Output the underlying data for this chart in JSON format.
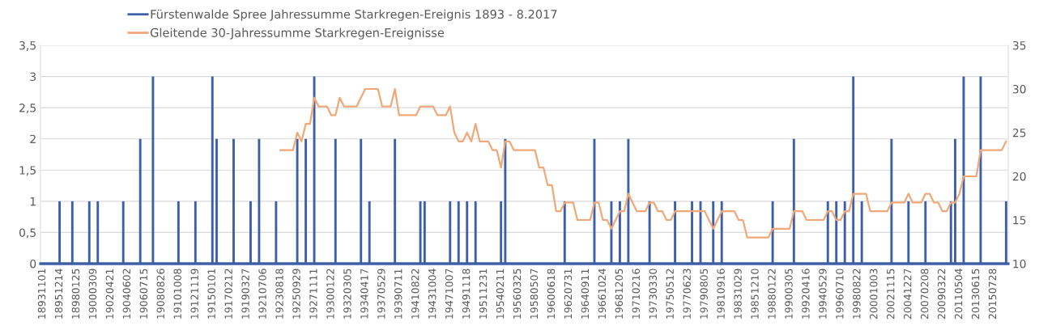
{
  "chart_data": {
    "type": "bar",
    "categories": [
      "18931101",
      null,
      null,
      null,
      "18951214",
      null,
      null,
      null,
      "18980125",
      null,
      null,
      null,
      "19000309",
      null,
      null,
      null,
      "19020421",
      null,
      null,
      null,
      "19040602",
      null,
      null,
      null,
      "19060715",
      null,
      null,
      null,
      "19080826",
      null,
      null,
      null,
      "19101008",
      null,
      null,
      null,
      "19121119",
      null,
      null,
      null,
      "19150101",
      null,
      null,
      null,
      "19170212",
      null,
      null,
      null,
      "19190327",
      null,
      null,
      null,
      "19210706",
      null,
      null,
      null,
      "19230818",
      null,
      null,
      null,
      "19250929",
      null,
      null,
      null,
      "19271111",
      null,
      null,
      null,
      "19300122",
      null,
      null,
      null,
      "19320305",
      null,
      null,
      null,
      "19340417",
      null,
      null,
      null,
      "19370529",
      null,
      null,
      null,
      "19390711",
      null,
      null,
      null,
      "19410822",
      null,
      null,
      null,
      "19431004",
      null,
      null,
      null,
      "19471007",
      null,
      null,
      null,
      "19491118",
      null,
      null,
      null,
      "19511231",
      null,
      null,
      null,
      "19540211",
      null,
      null,
      null,
      "19560325",
      null,
      null,
      null,
      "19580507",
      null,
      null,
      null,
      "19600618",
      null,
      null,
      null,
      "19620731",
      null,
      null,
      null,
      "19640911",
      null,
      null,
      null,
      "19661024",
      null,
      null,
      null,
      "19681205",
      null,
      null,
      null,
      "19710216",
      null,
      null,
      null,
      "19730330",
      null,
      null,
      null,
      "19750512",
      null,
      null,
      null,
      "19770623",
      null,
      null,
      null,
      "19790805",
      null,
      null,
      null,
      "19810916",
      null,
      null,
      null,
      "19831029",
      null,
      null,
      null,
      "19851210",
      null,
      null,
      null,
      "19880122",
      null,
      null,
      null,
      "19900305",
      null,
      null,
      null,
      "19920416",
      null,
      null,
      null,
      "19940529",
      null,
      null,
      null,
      "19960710",
      null,
      null,
      null,
      "19980822",
      null,
      null,
      null,
      "20001003",
      null,
      null,
      null,
      "20021115",
      null,
      null,
      null,
      "20041227",
      null,
      null,
      null,
      "20070208",
      null,
      null,
      null,
      "20090322",
      null,
      null,
      null,
      "20110504",
      null,
      null,
      null,
      "20130615",
      null,
      null,
      null,
      "20150728",
      null,
      null,
      null
    ],
    "series": [
      {
        "name": "Fürstenwalde Spree Jahressumme Starkregen-Ereignis 1893 - 8.2017",
        "color": "#3c5fa8",
        "values": [
          0,
          0,
          0,
          0,
          1,
          0,
          0,
          1,
          0,
          0,
          0,
          1,
          0,
          1,
          0,
          0,
          0,
          0,
          0,
          1,
          0,
          0,
          0,
          2,
          0,
          0,
          3,
          0,
          0,
          0,
          0,
          0,
          1,
          0,
          0,
          0,
          1,
          0,
          0,
          0,
          3,
          2,
          0,
          0,
          0,
          2,
          0,
          0,
          0,
          1,
          0,
          2,
          0,
          0,
          0,
          1,
          0,
          0,
          0,
          0,
          2,
          0,
          2,
          0,
          3,
          0,
          0,
          0,
          0,
          2,
          0,
          0,
          0,
          0,
          0,
          2,
          0,
          1,
          0,
          0,
          0,
          0,
          0,
          2,
          0,
          0,
          0,
          0,
          0,
          1,
          1,
          0,
          0,
          0,
          0,
          0,
          1,
          0,
          1,
          0,
          1,
          0,
          1,
          0,
          0,
          0,
          0,
          0,
          1,
          2,
          0,
          0,
          0,
          0,
          0,
          0,
          0,
          0,
          0,
          0,
          0,
          0,
          0,
          1,
          0,
          0,
          0,
          0,
          0,
          0,
          2,
          0,
          0,
          0,
          1,
          0,
          1,
          0,
          2,
          0,
          0,
          0,
          0,
          1,
          0,
          0,
          0,
          0,
          0,
          1,
          0,
          0,
          0,
          1,
          0,
          1,
          0,
          0,
          1,
          0,
          1,
          0,
          0,
          0,
          0,
          0,
          0,
          0,
          0,
          0,
          0,
          0,
          1,
          0,
          0,
          0,
          0,
          2,
          0,
          0,
          0,
          0,
          0,
          0,
          0,
          1,
          0,
          1,
          0,
          1,
          0,
          3,
          0,
          1,
          0,
          0,
          0,
          0,
          0,
          0,
          2,
          0,
          0,
          0,
          1,
          0,
          0,
          0,
          1,
          0,
          0,
          0,
          0,
          0,
          1,
          2,
          0,
          3,
          0,
          0,
          0,
          3,
          0,
          0,
          0,
          0,
          0,
          1
        ]
      },
      {
        "name": "Gleitende 30-Jahressumme Starkregen-Ereignisse",
        "type": "line",
        "axis": "y2",
        "color": "#f0a878",
        "values": [
          null,
          null,
          null,
          null,
          null,
          null,
          null,
          null,
          null,
          null,
          null,
          null,
          null,
          null,
          null,
          null,
          null,
          null,
          null,
          null,
          null,
          null,
          null,
          null,
          null,
          null,
          null,
          null,
          null,
          null,
          null,
          null,
          null,
          null,
          null,
          null,
          null,
          null,
          null,
          null,
          null,
          null,
          null,
          null,
          null,
          null,
          null,
          null,
          null,
          null,
          null,
          null,
          null,
          null,
          null,
          null,
          23,
          23,
          23,
          23,
          25,
          24,
          26,
          26,
          29,
          28,
          28,
          28,
          27,
          27,
          29,
          28,
          28,
          28,
          28,
          29,
          30,
          30,
          30,
          30,
          28,
          28,
          28,
          30,
          27,
          27,
          27,
          27,
          27,
          28,
          28,
          28,
          28,
          27,
          27,
          27,
          28,
          25,
          24,
          24,
          25,
          24,
          26,
          24,
          24,
          24,
          23,
          23,
          21,
          24,
          24,
          23,
          23,
          23,
          23,
          23,
          23,
          21,
          21,
          19,
          19,
          16,
          16,
          17,
          17,
          17,
          15,
          15,
          15,
          15,
          17,
          17,
          15,
          15,
          14,
          15,
          16,
          16,
          18,
          17,
          16,
          16,
          16,
          17,
          17,
          16,
          16,
          15,
          15,
          16,
          16,
          16,
          16,
          16,
          16,
          16,
          16,
          15,
          14,
          15,
          16,
          16,
          16,
          16,
          15,
          15,
          13,
          13,
          13,
          13,
          13,
          13,
          14,
          14,
          14,
          14,
          14,
          16,
          16,
          16,
          15,
          15,
          15,
          15,
          15,
          16,
          16,
          15,
          15,
          16,
          16,
          18,
          18,
          18,
          18,
          16,
          16,
          16,
          16,
          16,
          17,
          17,
          17,
          17,
          18,
          17,
          17,
          17,
          18,
          18,
          17,
          17,
          16,
          16,
          17,
          17,
          18,
          20,
          20,
          20,
          20,
          23,
          23,
          23,
          23,
          23,
          23,
          24
        ]
      }
    ],
    "ylim": [
      0,
      3.5
    ],
    "yticks": [
      0,
      {
        "value": 0.5,
        "label": "0,5"
      },
      1,
      {
        "value": 1.5,
        "label": "1,5"
      },
      2,
      {
        "value": 2.5,
        "label": "2,5"
      },
      3,
      {
        "value": 3.5,
        "label": "3,5"
      }
    ],
    "y2lim": [
      10,
      35
    ],
    "y2ticks": [
      10,
      15,
      20,
      25,
      30,
      35
    ],
    "grid": "y",
    "legend": "top"
  }
}
